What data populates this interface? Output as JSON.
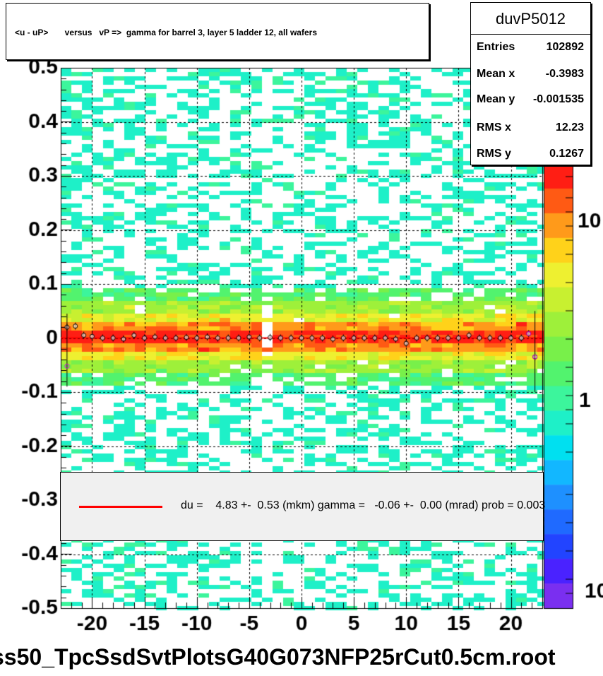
{
  "title": "<u - uP>       versus   vP =>  gamma for barrel 3, layer 5 ladder 12, all wafers",
  "stats": {
    "name": "duvP5012",
    "rows": [
      {
        "label": "Entries",
        "value": "102892"
      },
      {
        "label": "Mean x",
        "value": "-0.3983"
      },
      {
        "label": "Mean y",
        "value": "-0.001535"
      },
      {
        "label": "RMS x",
        "value": "12.23"
      },
      {
        "label": "RMS y",
        "value": "0.1267"
      }
    ]
  },
  "legend": {
    "text": "du =    4.83 +-  0.53 (mkm) gamma =   -0.06 +-  0.00 (mrad) prob = 0.003",
    "line_color": "#ff0000"
  },
  "footer": "ss50_TpcSsdSvtPlotsG40G073NFP25rCut0.5cm.root",
  "chart_data": {
    "type": "heatmap",
    "xlim": [
      -23,
      23
    ],
    "ylim": [
      -0.5,
      0.5
    ],
    "x_ticks": [
      -20,
      -15,
      -10,
      -5,
      0,
      5,
      10,
      15,
      20
    ],
    "y_ticks": [
      0.5,
      0.4,
      0.3,
      0.2,
      0.1,
      0,
      -0.1,
      -0.2,
      -0.3,
      -0.4,
      -0.5
    ],
    "grid": true,
    "colorbar": {
      "scale": "log",
      "tick_labels": [
        "10",
        "1",
        "10"
      ]
    },
    "band_center": 0.0,
    "band_width": 0.05,
    "fit_line": {
      "x": [
        -23,
        23
      ],
      "y": [
        0.0,
        0.0
      ],
      "color": "#ff0000"
    },
    "profile_points": {
      "x": [
        -22.4,
        -21.6,
        -20.8,
        -20,
        -19,
        -18,
        -17,
        -16,
        -15,
        -14,
        -13,
        -12,
        -11,
        -10,
        -9,
        -8,
        -7,
        -6,
        -5,
        -4,
        -3,
        -2,
        -1,
        0,
        1,
        2,
        3,
        4,
        5,
        6,
        7,
        8,
        9,
        10,
        11,
        12,
        13,
        14,
        15,
        16,
        17,
        18,
        19,
        20,
        21,
        21.7,
        22.3
      ],
      "y": [
        0.02,
        0.022,
        0.005,
        0.003,
        0.0,
        0.0,
        -0.002,
        0.005,
        0.0,
        0.002,
        0.0,
        0.0,
        0.001,
        0.0,
        0.002,
        0.0,
        0.0,
        0.0,
        0.002,
        0.0,
        0.001,
        0.0,
        0.0,
        0.0,
        0.0,
        0.0,
        -0.002,
        0.0,
        0.0,
        0.0,
        0.0,
        0.0,
        -0.002,
        -0.01,
        0.0,
        0.0,
        0.0,
        0.0,
        0.0,
        0.005,
        0.0,
        0.0,
        0.0,
        0.0,
        0.0,
        0.008,
        -0.035
      ]
    },
    "outlier_points": {
      "x": [
        -22.4
      ],
      "y": [
        -0.052
      ]
    }
  }
}
